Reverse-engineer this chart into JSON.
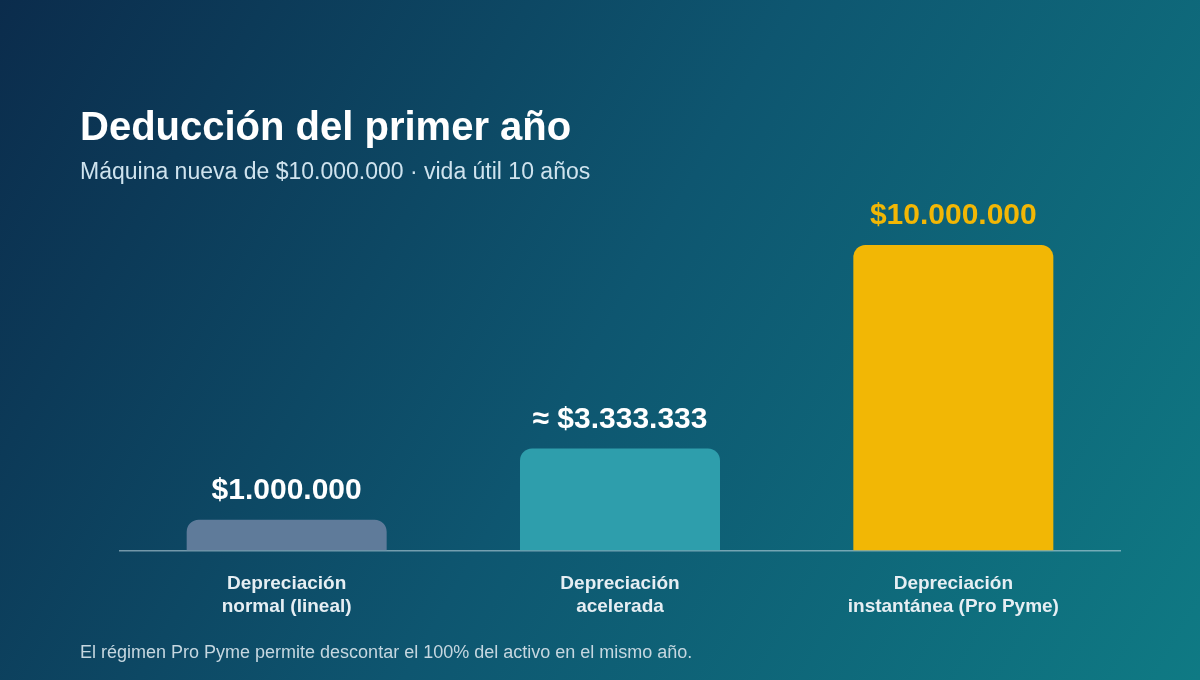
{
  "chart_data": {
    "type": "bar",
    "title": "Deducción del primer año",
    "subtitle": "Máquina nueva de $10.000.000 · vida útil 10 años",
    "categories": [
      "Depreciación normal (lineal)",
      "Depreciación acelerada",
      "Depreciación instantánea (Pro Pyme)"
    ],
    "values": [
      1000000,
      3333333,
      10000000
    ],
    "colors": [
      "#5f7b9a",
      "#2e9eac",
      "#f2b705"
    ],
    "value_labels": [
      "$1.000.000",
      "≈ $3.333.333",
      "$10.000.000"
    ],
    "annotations": [
      "El régimen Pro Pyme permite descontar el 100% del activo en el mismo año."
    ],
    "grid": false,
    "legend": false
  }
}
